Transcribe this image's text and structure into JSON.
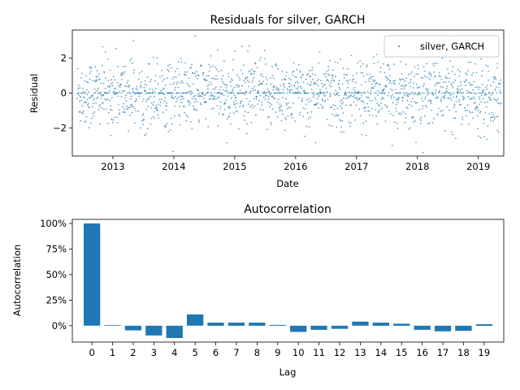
{
  "chart_data": [
    {
      "type": "scatter",
      "title": "Residuals for silver, GARCH",
      "xlabel": "Date",
      "ylabel": "Residual",
      "xlim": [
        "2012-05-01",
        "2019-06-01"
      ],
      "ylim": [
        -3.6,
        3.6
      ],
      "x_ticks": [
        "2013",
        "2014",
        "2015",
        "2016",
        "2017",
        "2018",
        "2019"
      ],
      "y_ticks": [
        -2,
        0,
        2
      ],
      "legend": {
        "position": "top-right",
        "entries": [
          "silver, GARCH"
        ]
      },
      "series": [
        {
          "name": "silver, GARCH",
          "color": "#1f77b4",
          "x_range": [
            "2012-06-01",
            "2019-05-15"
          ],
          "count": 1760,
          "distribution": "approximately standard normal, mean 0, sd 1, clipped to about ±3.4"
        }
      ]
    },
    {
      "type": "bar",
      "title": "Autocorrelation",
      "xlabel": "Lag",
      "ylabel": "Autocorrelation",
      "ylim": [
        -0.16,
        1.04
      ],
      "y_ticks": [
        "0%",
        "25%",
        "50%",
        "75%",
        "100%"
      ],
      "categories": [
        "0",
        "1",
        "2",
        "3",
        "4",
        "5",
        "6",
        "7",
        "8",
        "9",
        "10",
        "11",
        "12",
        "13",
        "14",
        "15",
        "16",
        "17",
        "18",
        "19"
      ],
      "values": [
        1.0,
        0.005,
        -0.045,
        -0.095,
        -0.12,
        0.11,
        0.03,
        0.03,
        0.03,
        0.008,
        -0.06,
        -0.04,
        -0.03,
        0.04,
        0.03,
        0.02,
        -0.04,
        -0.055,
        -0.05,
        0.015
      ],
      "color": "#1f77b4"
    }
  ]
}
